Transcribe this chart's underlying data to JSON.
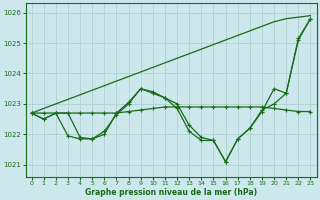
{
  "xlabel": "Graphe pression niveau de la mer (hPa)",
  "bg_color": "#cce8ec",
  "grid_color": "#aacccc",
  "line_color": "#1a6b1a",
  "ylim": [
    1020.6,
    1026.3
  ],
  "xlim": [
    -0.5,
    23.5
  ],
  "yticks": [
    1021,
    1022,
    1023,
    1024,
    1025,
    1026
  ],
  "xticks": [
    0,
    1,
    2,
    3,
    4,
    5,
    6,
    7,
    8,
    9,
    10,
    11,
    12,
    13,
    14,
    15,
    16,
    17,
    18,
    19,
    20,
    21,
    22,
    23
  ],
  "line_straight": [
    1022.7,
    1022.85,
    1023.0,
    1023.15,
    1023.3,
    1023.45,
    1023.6,
    1023.75,
    1023.9,
    1024.05,
    1024.2,
    1024.35,
    1024.5,
    1024.65,
    1024.8,
    1024.95,
    1025.1,
    1025.25,
    1025.4,
    1025.55,
    1025.7,
    1025.8,
    1025.85,
    1025.9
  ],
  "line_wave1": [
    1022.7,
    1022.5,
    1022.7,
    1021.95,
    1021.85,
    1021.85,
    1022.1,
    1022.65,
    1023.0,
    1023.5,
    1023.4,
    1023.2,
    1022.85,
    1022.1,
    1021.8,
    1021.8,
    1021.1,
    1021.85,
    1022.2,
    1022.8,
    1023.0,
    1023.35,
    1025.1,
    1025.8
  ],
  "line_wave2": [
    1022.7,
    1022.5,
    1022.7,
    1022.7,
    1021.9,
    1021.85,
    1022.0,
    1022.7,
    1023.05,
    1023.5,
    1023.35,
    1023.2,
    1023.0,
    1022.3,
    1021.9,
    1021.8,
    1021.1,
    1021.85,
    1022.2,
    1022.75,
    1023.5,
    1023.35,
    1025.15,
    1025.8
  ],
  "line_flat": [
    1022.7,
    1022.7,
    1022.7,
    1022.7,
    1022.7,
    1022.7,
    1022.7,
    1022.7,
    1022.75,
    1022.8,
    1022.85,
    1022.9,
    1022.9,
    1022.9,
    1022.9,
    1022.9,
    1022.9,
    1022.9,
    1022.9,
    1022.9,
    1022.85,
    1022.8,
    1022.75,
    1022.75
  ]
}
